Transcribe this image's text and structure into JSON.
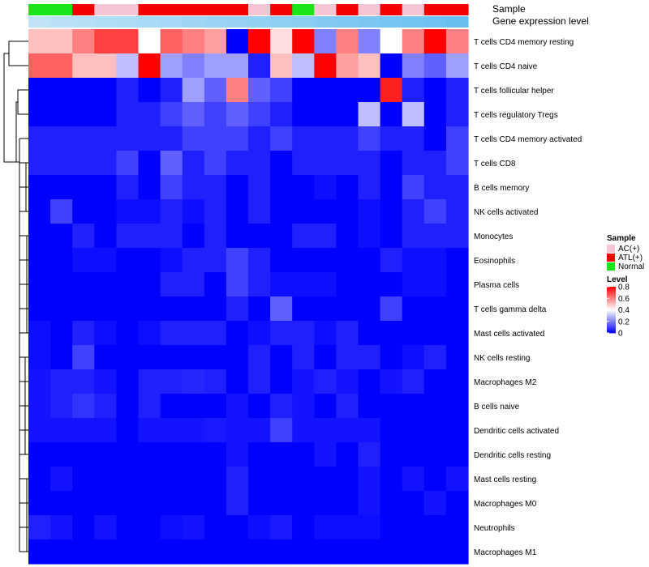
{
  "chart_data": {
    "type": "heatmap",
    "title": "",
    "columns": 20,
    "annotations": {
      "sample_label": "Sample",
      "gene_expression_label": "Gene expression level",
      "sample_groups": [
        "Normal",
        "Normal",
        "ATL(+)",
        "AC(+)",
        "AC(+)",
        "ATL(+)",
        "ATL(+)",
        "ATL(+)",
        "ATL(+)",
        "ATL(+)",
        "AC(+)",
        "ATL(+)",
        "Normal",
        "AC(+)",
        "ATL(+)",
        "AC(+)",
        "ATL(+)",
        "AC(+)",
        "ATL(+)",
        "ATL(+)"
      ],
      "gene_expression_levels": [
        0.1,
        0.12,
        0.14,
        0.16,
        0.18,
        0.2,
        0.22,
        0.24,
        0.26,
        0.28,
        0.3,
        0.32,
        0.34,
        0.36,
        0.38,
        0.4,
        0.42,
        0.44,
        0.46,
        0.48
      ]
    },
    "rows": [
      {
        "name": "T cells CD4 memory resting",
        "values": [
          0.5,
          0.5,
          0.6,
          0.7,
          0.7,
          0.4,
          0.65,
          0.6,
          0.55,
          0.0,
          0.8,
          0.45,
          0.8,
          0.2,
          0.6,
          0.2,
          0.4,
          0.6,
          0.8,
          0.6
        ]
      },
      {
        "name": "T cells CD4 naive",
        "values": [
          0.65,
          0.65,
          0.5,
          0.5,
          0.3,
          0.8,
          0.25,
          0.2,
          0.25,
          0.25,
          0.05,
          0.5,
          0.3,
          0.8,
          0.55,
          0.5,
          0.0,
          0.2,
          0.15,
          0.25
        ]
      },
      {
        "name": "T cells follicular helper",
        "values": [
          0.0,
          0.0,
          0.0,
          0.0,
          0.05,
          0.0,
          0.05,
          0.25,
          0.15,
          0.6,
          0.15,
          0.1,
          0.0,
          0.0,
          0.0,
          0.0,
          0.75,
          0.05,
          0.0,
          0.05
        ]
      },
      {
        "name": "T cells regulatory  Tregs",
        "values": [
          0.0,
          0.0,
          0.0,
          0.0,
          0.05,
          0.05,
          0.1,
          0.15,
          0.1,
          0.15,
          0.1,
          0.05,
          0.0,
          0.0,
          0.0,
          0.3,
          0.0,
          0.3,
          0.0,
          0.05
        ]
      },
      {
        "name": "T cells CD4 memory activated",
        "values": [
          0.05,
          0.05,
          0.05,
          0.05,
          0.05,
          0.05,
          0.05,
          0.1,
          0.1,
          0.1,
          0.05,
          0.1,
          0.05,
          0.05,
          0.05,
          0.1,
          0.05,
          0.05,
          0.0,
          0.1
        ]
      },
      {
        "name": "T cells CD8",
        "values": [
          0.05,
          0.05,
          0.05,
          0.05,
          0.1,
          0.0,
          0.15,
          0.05,
          0.1,
          0.05,
          0.05,
          0.0,
          0.05,
          0.05,
          0.05,
          0.05,
          0.0,
          0.05,
          0.05,
          0.1
        ]
      },
      {
        "name": "B cells memory",
        "values": [
          0.0,
          0.0,
          0.0,
          0.0,
          0.05,
          0.0,
          0.1,
          0.05,
          0.05,
          0.0,
          0.05,
          0.0,
          0.0,
          0.02,
          0.0,
          0.05,
          0.0,
          0.1,
          0.05,
          0.05
        ]
      },
      {
        "name": "NK cells activated",
        "values": [
          0.0,
          0.1,
          0.0,
          0.0,
          0.02,
          0.02,
          0.05,
          0.02,
          0.05,
          0.0,
          0.05,
          0.0,
          0.0,
          0.0,
          0.0,
          0.02,
          0.0,
          0.05,
          0.1,
          0.05
        ]
      },
      {
        "name": "Monocytes",
        "values": [
          0.0,
          0.0,
          0.05,
          0.0,
          0.05,
          0.05,
          0.05,
          0.0,
          0.05,
          0.0,
          0.0,
          0.0,
          0.05,
          0.05,
          0.0,
          0.02,
          0.0,
          0.05,
          0.05,
          0.05
        ]
      },
      {
        "name": "Eosinophils",
        "values": [
          0.0,
          0.0,
          0.02,
          0.02,
          0.0,
          0.0,
          0.02,
          0.05,
          0.05,
          0.1,
          0.05,
          0.0,
          0.0,
          0.0,
          0.0,
          0.0,
          0.05,
          0.02,
          0.02,
          0.0
        ]
      },
      {
        "name": "Plasma cells",
        "values": [
          0.0,
          0.0,
          0.0,
          0.0,
          0.0,
          0.0,
          0.05,
          0.05,
          0.0,
          0.1,
          0.05,
          0.02,
          0.02,
          0.02,
          0.0,
          0.0,
          0.0,
          0.02,
          0.02,
          0.0
        ]
      },
      {
        "name": "T cells gamma delta",
        "values": [
          0.0,
          0.0,
          0.0,
          0.0,
          0.0,
          0.0,
          0.0,
          0.0,
          0.0,
          0.05,
          0.0,
          0.15,
          0.0,
          0.0,
          0.0,
          0.0,
          0.1,
          0.0,
          0.0,
          0.0
        ]
      },
      {
        "name": "Mast cells activated",
        "values": [
          0.02,
          0.0,
          0.05,
          0.02,
          0.0,
          0.02,
          0.05,
          0.05,
          0.05,
          0.0,
          0.02,
          0.05,
          0.05,
          0.02,
          0.05,
          0.0,
          0.0,
          0.0,
          0.0,
          0.0
        ]
      },
      {
        "name": "NK cells resting",
        "values": [
          0.02,
          0.0,
          0.1,
          0.0,
          0.0,
          0.0,
          0.0,
          0.0,
          0.0,
          0.0,
          0.05,
          0.0,
          0.05,
          0.0,
          0.05,
          0.05,
          0.0,
          0.02,
          0.05,
          0.0
        ]
      },
      {
        "name": "Macrophages M2",
        "values": [
          0.03,
          0.05,
          0.05,
          0.03,
          0.0,
          0.05,
          0.05,
          0.06,
          0.05,
          0.0,
          0.05,
          0.0,
          0.03,
          0.05,
          0.03,
          0.0,
          0.03,
          0.05,
          0.0,
          0.0
        ]
      },
      {
        "name": "B cells naive",
        "values": [
          0.03,
          0.05,
          0.08,
          0.05,
          0.0,
          0.05,
          0.0,
          0.0,
          0.0,
          0.03,
          0.0,
          0.05,
          0.03,
          0.0,
          0.05,
          0.0,
          0.0,
          0.0,
          0.0,
          0.0
        ]
      },
      {
        "name": "Dendritic cells activated",
        "values": [
          0.03,
          0.03,
          0.03,
          0.03,
          0.0,
          0.03,
          0.03,
          0.03,
          0.04,
          0.03,
          0.03,
          0.1,
          0.03,
          0.03,
          0.03,
          0.03,
          0.0,
          0.0,
          0.0,
          0.0
        ]
      },
      {
        "name": "Dendritic cells resting",
        "values": [
          0.0,
          0.0,
          0.0,
          0.0,
          0.0,
          0.0,
          0.0,
          0.0,
          0.0,
          0.03,
          0.0,
          0.0,
          0.0,
          0.03,
          0.0,
          0.05,
          0.0,
          0.0,
          0.0,
          0.0
        ]
      },
      {
        "name": "Mast cells resting",
        "values": [
          0.0,
          0.03,
          0.0,
          0.0,
          0.0,
          0.0,
          0.0,
          0.0,
          0.0,
          0.05,
          0.0,
          0.0,
          0.0,
          0.0,
          0.0,
          0.03,
          0.0,
          0.03,
          0.0,
          0.03
        ]
      },
      {
        "name": "Macrophages M0",
        "values": [
          0.0,
          0.0,
          0.0,
          0.0,
          0.0,
          0.0,
          0.0,
          0.0,
          0.0,
          0.05,
          0.0,
          0.0,
          0.0,
          0.0,
          0.0,
          0.03,
          0.0,
          0.0,
          0.03,
          0.0
        ]
      },
      {
        "name": "Neutrophils",
        "values": [
          0.05,
          0.03,
          0.0,
          0.03,
          0.0,
          0.0,
          0.02,
          0.03,
          0.0,
          0.0,
          0.02,
          0.04,
          0.0,
          0.02,
          0.02,
          0.02,
          0.0,
          0.0,
          0.0,
          0.0
        ]
      },
      {
        "name": "Macrophages M1",
        "values": [
          0.0,
          0.0,
          0.0,
          0.0,
          0.0,
          0.0,
          0.0,
          0.0,
          0.0,
          0.0,
          0.0,
          0.0,
          0.0,
          0.0,
          0.0,
          0.0,
          0.0,
          0.0,
          0.0,
          0.0
        ]
      }
    ],
    "legend_sample": {
      "title": "Sample",
      "items": [
        {
          "label": "AC(+)",
          "color": "#f7c6d4"
        },
        {
          "label": "ATL(+)",
          "color": "#f50000"
        },
        {
          "label": "Normal",
          "color": "#19e619"
        }
      ]
    },
    "legend_level": {
      "title": "Level",
      "min": 0,
      "max": 0.8,
      "ticks": [
        "0.8",
        "0.6",
        "0.4",
        "0.2",
        "0"
      ],
      "color_low": "#0000ff",
      "color_mid": "#ffffff",
      "color_high": "#ff0000"
    }
  }
}
